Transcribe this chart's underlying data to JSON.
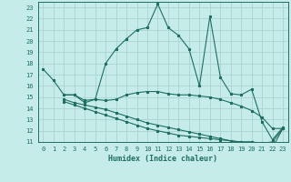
{
  "xlabel": "Humidex (Indice chaleur)",
  "background_color": "#c6ecea",
  "grid_color": "#aad4d0",
  "line_color": "#1e6e62",
  "xlim": [
    -0.5,
    23.5
  ],
  "ylim": [
    11,
    23.5
  ],
  "xticks": [
    0,
    1,
    2,
    3,
    4,
    5,
    6,
    7,
    8,
    9,
    10,
    11,
    12,
    13,
    14,
    15,
    16,
    17,
    18,
    19,
    20,
    21,
    22,
    23
  ],
  "yticks": [
    11,
    12,
    13,
    14,
    15,
    16,
    17,
    18,
    19,
    20,
    21,
    22,
    23
  ],
  "series1_x": [
    0,
    1,
    2,
    3,
    4,
    5,
    6,
    7,
    8,
    9,
    10,
    11,
    12,
    13,
    14,
    15,
    16,
    17,
    18,
    19,
    20,
    21,
    22,
    23
  ],
  "series1_y": [
    17.5,
    16.5,
    15.2,
    15.2,
    14.7,
    14.8,
    18.0,
    19.3,
    20.2,
    21.0,
    21.2,
    23.3,
    21.2,
    20.5,
    19.3,
    16.0,
    22.2,
    16.8,
    15.3,
    15.2,
    15.7,
    12.8,
    11.2,
    12.3
  ],
  "series2_x": [
    2,
    3,
    4,
    5,
    6,
    7,
    8,
    9,
    10,
    11,
    12,
    13,
    14,
    15,
    16,
    17,
    18,
    19,
    20,
    21,
    22,
    23
  ],
  "series2_y": [
    15.2,
    15.2,
    14.5,
    14.8,
    14.7,
    14.8,
    15.2,
    15.4,
    15.5,
    15.5,
    15.3,
    15.2,
    15.2,
    15.1,
    15.0,
    14.8,
    14.5,
    14.2,
    13.8,
    13.2,
    12.2,
    12.2
  ],
  "series3_x": [
    2,
    3,
    4,
    5,
    6,
    7,
    8,
    9,
    10,
    11,
    12,
    13,
    14,
    15,
    16,
    17,
    18,
    19,
    20,
    21,
    22,
    23
  ],
  "series3_y": [
    14.8,
    14.5,
    14.3,
    14.1,
    13.9,
    13.6,
    13.3,
    13.0,
    12.7,
    12.5,
    12.3,
    12.1,
    11.9,
    11.7,
    11.5,
    11.3,
    11.1,
    11.0,
    11.0,
    10.9,
    11.0,
    12.2
  ],
  "series4_x": [
    2,
    3,
    4,
    5,
    6,
    7,
    8,
    9,
    10,
    11,
    12,
    13,
    14,
    15,
    16,
    17,
    18,
    19,
    20,
    21,
    22,
    23
  ],
  "series4_y": [
    14.6,
    14.3,
    14.0,
    13.7,
    13.4,
    13.1,
    12.8,
    12.5,
    12.2,
    12.0,
    11.8,
    11.6,
    11.5,
    11.4,
    11.3,
    11.2,
    11.1,
    11.0,
    11.0,
    10.8,
    10.5,
    12.2
  ]
}
